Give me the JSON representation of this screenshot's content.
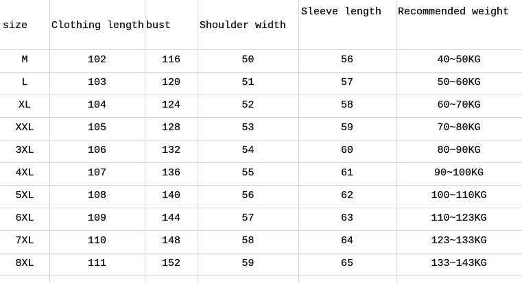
{
  "table": {
    "headers": [
      "size",
      "Clothing length",
      "bust",
      "Shoulder width",
      "Sleeve length",
      "Recommended weight"
    ],
    "rows": [
      [
        "M",
        "102",
        "116",
        "50",
        "56",
        "40~50KG"
      ],
      [
        "L",
        "103",
        "120",
        "51",
        "57",
        "50~60KG"
      ],
      [
        "XL",
        "104",
        "124",
        "52",
        "58",
        "60~70KG"
      ],
      [
        "XXL",
        "105",
        "128",
        "53",
        "59",
        "70~80KG"
      ],
      [
        "3XL",
        "106",
        "132",
        "54",
        "60",
        "80~90KG"
      ],
      [
        "4XL",
        "107",
        "136",
        "55",
        "61",
        "90~100KG"
      ],
      [
        "5XL",
        "108",
        "140",
        "56",
        "62",
        "100~110KG"
      ],
      [
        "6XL",
        "109",
        "144",
        "57",
        "63",
        "110~123KG"
      ],
      [
        "7XL",
        "110",
        "148",
        "58",
        "64",
        "123~133KG"
      ],
      [
        "8XL",
        "111",
        "152",
        "59",
        "65",
        "133~143KG"
      ]
    ]
  }
}
